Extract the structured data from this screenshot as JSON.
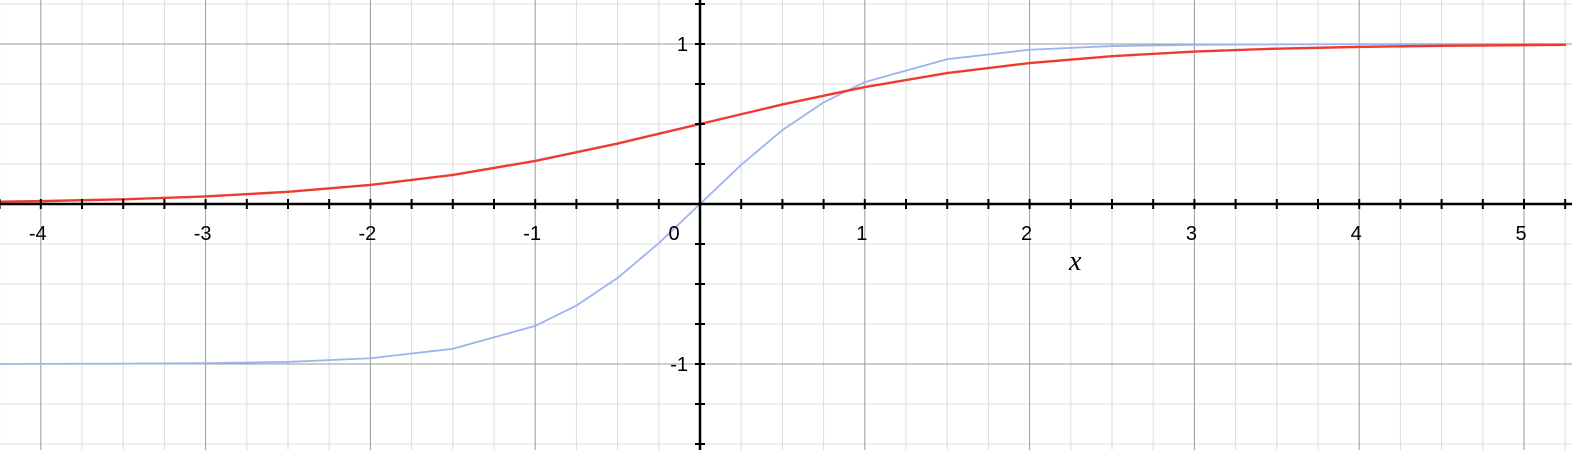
{
  "chart_data": {
    "type": "line",
    "title": "",
    "xlabel": "x",
    "ylabel": "",
    "xlim": [
      -4.25,
      5.25
    ],
    "ylim": [
      -1.5,
      1.25
    ],
    "grid": true,
    "x_ticks": [
      -4,
      -3,
      -2,
      -1,
      0,
      1,
      2,
      3,
      4,
      5
    ],
    "x_tick_labels": [
      "-4",
      "-3",
      "-2",
      "-1",
      "0",
      "1",
      "2",
      "3",
      "4",
      "5"
    ],
    "y_ticks": [
      1,
      -1
    ],
    "y_tick_labels": [
      "1",
      "-1"
    ],
    "series": [
      {
        "color": "#ee3b2f",
        "x": [
          -4.25,
          -4,
          -3.5,
          -3,
          -2.5,
          -2,
          -1.5,
          -1,
          -0.5,
          0,
          0.5,
          1,
          1.5,
          2,
          2.5,
          3,
          3.5,
          4,
          4.5,
          5,
          5.25
        ],
        "y": [
          0.014,
          0.018,
          0.029,
          0.047,
          0.076,
          0.119,
          0.182,
          0.269,
          0.378,
          0.5,
          0.622,
          0.731,
          0.818,
          0.881,
          0.924,
          0.953,
          0.971,
          0.982,
          0.989,
          0.993,
          0.995
        ]
      },
      {
        "color": "#9fb3ef",
        "x": [
          -4.25,
          -4,
          -3.5,
          -3,
          -2.5,
          -2,
          -1.5,
          -1,
          -0.75,
          -0.5,
          -0.25,
          0,
          0.25,
          0.5,
          0.75,
          1,
          1.5,
          2,
          2.5,
          3,
          3.5,
          4,
          4.5,
          5,
          5.25
        ],
        "y": [
          -1,
          -0.999,
          -0.998,
          -0.995,
          -0.987,
          -0.964,
          -0.905,
          -0.762,
          -0.635,
          -0.462,
          -0.245,
          0,
          0.245,
          0.462,
          0.635,
          0.762,
          0.905,
          0.964,
          0.987,
          0.995,
          0.998,
          0.999,
          1,
          1,
          1
        ]
      }
    ]
  }
}
